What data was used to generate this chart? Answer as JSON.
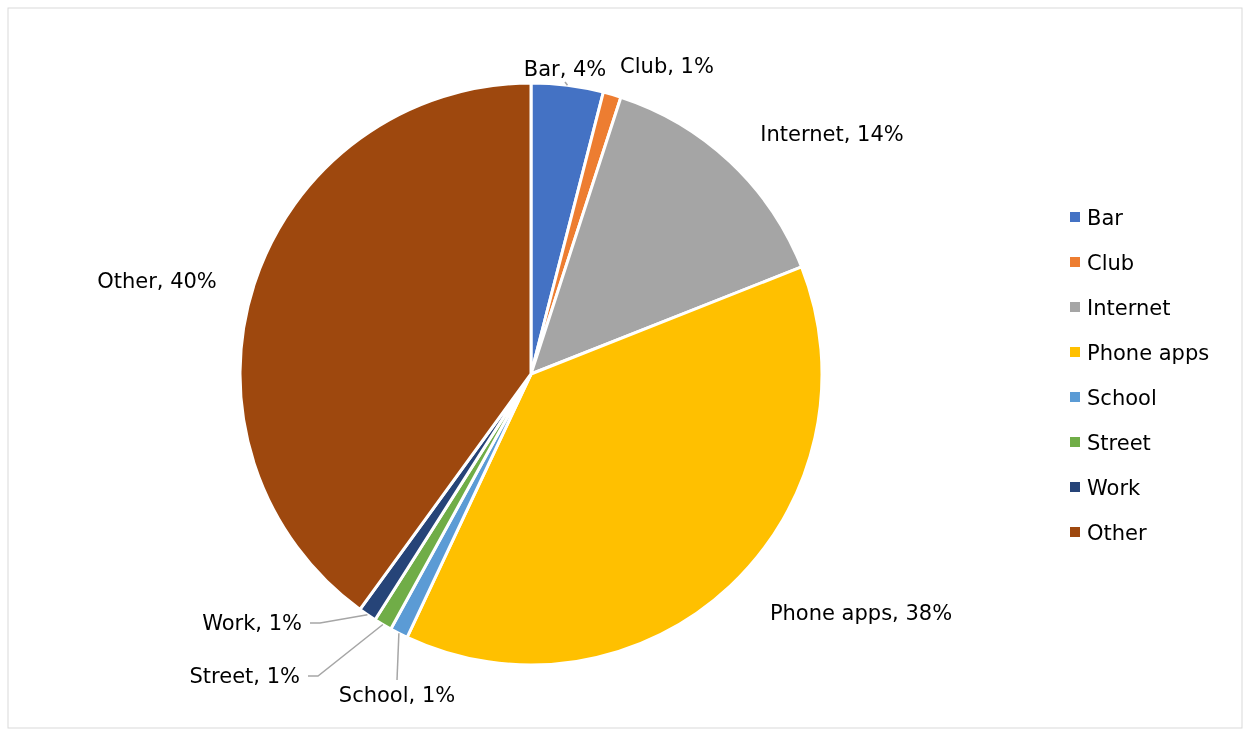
{
  "chart_data": {
    "type": "pie",
    "categories": [
      "Bar",
      "Club",
      "Internet",
      "Phone apps",
      "School",
      "Street",
      "Work",
      "Other"
    ],
    "values": [
      4,
      1,
      14,
      38,
      1,
      1,
      1,
      40
    ],
    "colors": [
      "#4472c4",
      "#ed7d31",
      "#a5a5a5",
      "#ffc000",
      "#5b9bd5",
      "#70ad47",
      "#264478",
      "#9e480e"
    ],
    "value_labels": [
      "Bar, 4%",
      "Club, 1%",
      "Internet, 14%",
      "Phone apps, 38%",
      "School, 1%",
      "Street, 1%",
      "Work, 1%",
      "Other, 40%"
    ],
    "legend": "right"
  }
}
